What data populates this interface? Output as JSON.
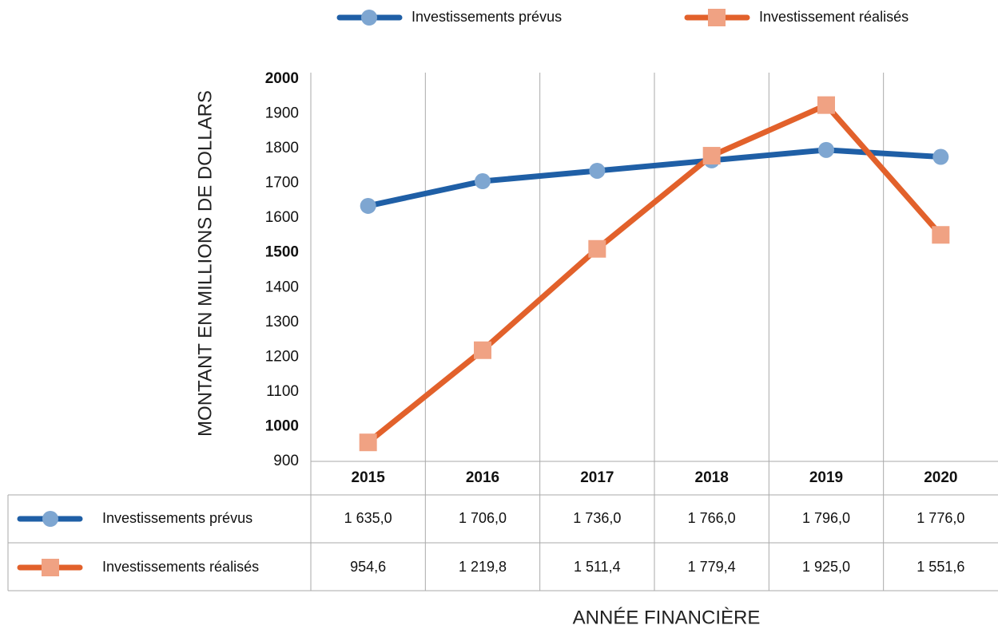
{
  "chart_data": {
    "type": "line",
    "categories": [
      "2015",
      "2016",
      "2017",
      "2018",
      "2019",
      "2020"
    ],
    "series": [
      {
        "name": "Investissements prévus",
        "color": "#1f5fa6",
        "marker_color": "#7ea6d1",
        "marker": "circle",
        "values": [
          1635.0,
          1706.0,
          1736.0,
          1766.0,
          1796.0,
          1776.0
        ],
        "value_labels": [
          "1 635,0",
          "1 706,0",
          "1 736,0",
          "1 766,0",
          "1 796,0",
          "1 776,0"
        ]
      },
      {
        "name": "Investissement réalisés",
        "table_name": "Investissements réalisés",
        "color": "#e2612b",
        "marker_color": "#f0a283",
        "marker": "square",
        "values": [
          954.6,
          1219.8,
          1511.4,
          1779.4,
          1925.0,
          1551.6
        ],
        "value_labels": [
          "954,6",
          "1 219,8",
          "1 511,4",
          "1 779,4",
          "1 925,0",
          "1 551,6"
        ]
      }
    ],
    "ylim": [
      900,
      2000
    ],
    "yticks": [
      900,
      1000,
      1100,
      1200,
      1300,
      1400,
      1500,
      1600,
      1700,
      1800,
      1900,
      2000
    ],
    "y_label": "MONTANT EN MILLIONS DE DOLLARS",
    "x_label": "ANNÉE FINANCIÈRE",
    "grid": true,
    "legend": "top"
  }
}
